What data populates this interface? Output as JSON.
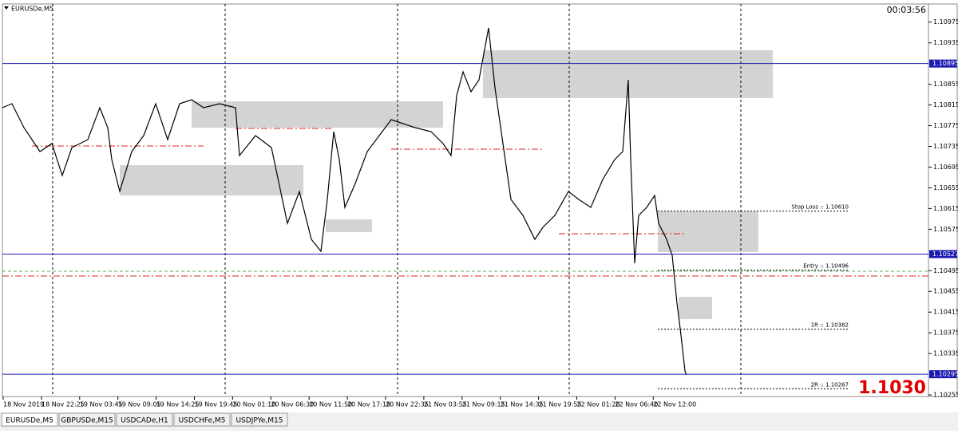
{
  "window": {
    "title": "EURUSDe,M5",
    "clock": "00:03:56",
    "big_price": "1.1030"
  },
  "price_axis": {
    "ylim": [
      1.10252,
      1.1101
    ],
    "ticks": [
      1.10975,
      1.10935,
      1.10855,
      1.10815,
      1.10775,
      1.10735,
      1.10695,
      1.10655,
      1.10615,
      1.10575,
      1.10495,
      1.10455,
      1.10415,
      1.10375,
      1.10335,
      1.10255
    ],
    "marked": [
      1.10895,
      1.10527,
      1.10295
    ]
  },
  "time_axis": {
    "labels": [
      "18 Nov 2019",
      "18 Nov 22:25",
      "19 Nov 03:45",
      "19 Nov 09:05",
      "19 Nov 14:25",
      "19 Nov 19:45",
      "20 Nov 01:10",
      "20 Nov 06:30",
      "20 Nov 11:50",
      "20 Nov 17:10",
      "20 Nov 22:35",
      "21 Nov 03:55",
      "21 Nov 09:15",
      "21 Nov 14:35",
      "21 Nov 19:55",
      "22 Nov 01:20",
      "22 Nov 06:40",
      "22 Nov 12:00"
    ]
  },
  "levels": [
    {
      "label": "Stop Loss :: 1.10610",
      "value": 1.1061
    },
    {
      "label": "Entry :: 1.10496",
      "value": 1.10496
    },
    {
      "label": "1R :: 1.10382",
      "value": 1.10382
    },
    {
      "label": "2R :: 1.10267",
      "value": 1.10267
    }
  ],
  "tabs": [
    "EURUSDe,M5",
    "GBPUSDe,M15",
    "USDCADe,H1",
    "USDCHFe,M5",
    "USDJPYe,M15"
  ]
}
